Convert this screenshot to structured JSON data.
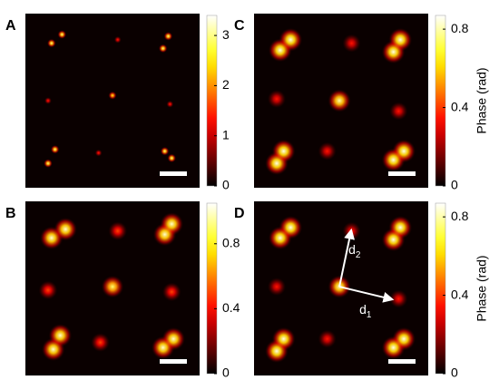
{
  "chart_data": [
    {
      "type": "heatmap",
      "label": "A",
      "xlim": [
        0,
        1
      ],
      "ylim": [
        1,
        0
      ],
      "clim": [
        0,
        3.4
      ],
      "colorbar_ticks": [
        0,
        1,
        2,
        3
      ],
      "x": [
        0.15,
        0.21,
        0.53,
        0.82,
        0.79,
        0.13,
        0.5,
        0.83,
        0.17,
        0.13,
        0.42,
        0.8,
        0.84
      ],
      "y": [
        0.17,
        0.12,
        0.15,
        0.13,
        0.2,
        0.5,
        0.47,
        0.52,
        0.78,
        0.86,
        0.8,
        0.79,
        0.83
      ],
      "values": [
        3,
        3,
        1.4,
        3,
        3,
        1.4,
        2.6,
        1.4,
        3,
        3,
        1.4,
        3,
        3
      ]
    },
    {
      "type": "heatmap",
      "label": "B",
      "xlim": [
        0,
        1
      ],
      "ylim": [
        1,
        0
      ],
      "clim": [
        0,
        1.05
      ],
      "colorbar_ticks": [
        0,
        0.4,
        0.8
      ],
      "x": [
        0.15,
        0.23,
        0.53,
        0.8,
        0.84,
        0.13,
        0.5,
        0.84,
        0.2,
        0.16,
        0.43,
        0.79,
        0.85
      ],
      "y": [
        0.21,
        0.16,
        0.17,
        0.19,
        0.13,
        0.51,
        0.49,
        0.52,
        0.77,
        0.85,
        0.81,
        0.84,
        0.79
      ],
      "values": [
        1,
        1,
        0.5,
        1,
        1,
        0.5,
        0.9,
        0.5,
        1,
        1,
        0.5,
        1,
        1
      ]
    },
    {
      "type": "heatmap",
      "label": "C",
      "xlim": [
        0,
        1
      ],
      "ylim": [
        1,
        0
      ],
      "clim": [
        0,
        0.87
      ],
      "colorbar_ticks": [
        0,
        0.4,
        0.8
      ],
      "colorbar_label": "Phase (rad)",
      "x": [
        0.15,
        0.21,
        0.56,
        0.8,
        0.84,
        0.13,
        0.49,
        0.83,
        0.17,
        0.13,
        0.42,
        0.8,
        0.86
      ],
      "y": [
        0.21,
        0.15,
        0.17,
        0.22,
        0.15,
        0.49,
        0.5,
        0.56,
        0.79,
        0.86,
        0.79,
        0.84,
        0.79
      ],
      "values": [
        0.85,
        0.85,
        0.35,
        0.85,
        0.85,
        0.35,
        0.8,
        0.35,
        0.85,
        0.85,
        0.35,
        0.85,
        0.85
      ],
      "annotations": []
    },
    {
      "type": "heatmap",
      "label": "D",
      "xlim": [
        0,
        1
      ],
      "ylim": [
        1,
        0
      ],
      "clim": [
        0,
        0.87
      ],
      "colorbar_ticks": [
        0,
        0.4,
        0.8
      ],
      "colorbar_label": "Phase (rad)",
      "x": [
        0.15,
        0.21,
        0.56,
        0.8,
        0.84,
        0.13,
        0.49,
        0.83,
        0.17,
        0.13,
        0.42,
        0.8,
        0.86
      ],
      "y": [
        0.21,
        0.15,
        0.17,
        0.22,
        0.15,
        0.49,
        0.49,
        0.56,
        0.79,
        0.86,
        0.79,
        0.84,
        0.79
      ],
      "values": [
        0.85,
        0.85,
        0.35,
        0.85,
        0.85,
        0.35,
        0.8,
        0.35,
        0.85,
        0.85,
        0.35,
        0.85,
        0.85
      ],
      "annotations": [
        {
          "text": "d",
          "subscript": "2"
        },
        {
          "text": "d",
          "subscript": "1"
        }
      ]
    }
  ]
}
